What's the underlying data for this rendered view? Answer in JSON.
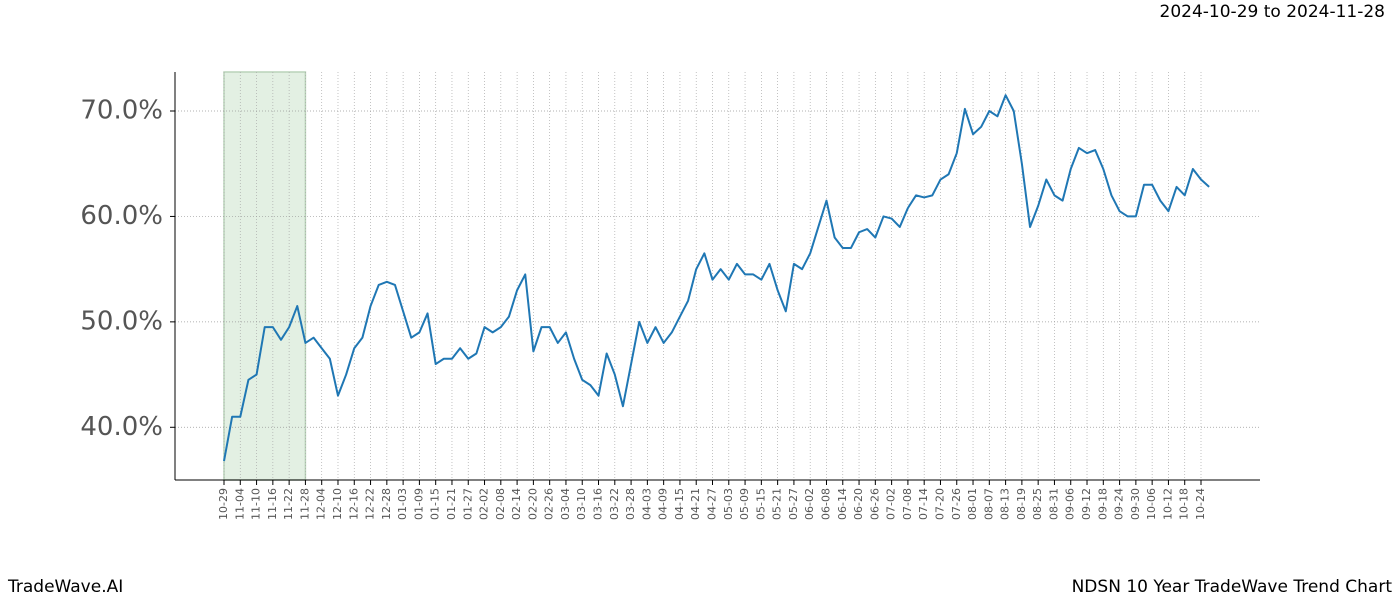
{
  "chart_data": {
    "type": "line",
    "title": "NDSN 10 Year TradeWave Trend Chart",
    "subtitle": "2024-10-29 to 2024-11-28",
    "brand": "TradeWave.AI",
    "categories": [
      "10-29",
      null,
      "11-04",
      null,
      "11-10",
      null,
      "11-16",
      null,
      "11-22",
      null,
      "11-28",
      null,
      "12-04",
      null,
      "12-10",
      null,
      "12-16",
      null,
      "12-22",
      null,
      "12-28",
      null,
      "01-03",
      null,
      "01-09",
      null,
      "01-15",
      null,
      "01-21",
      null,
      "01-27",
      null,
      "02-02",
      null,
      "02-08",
      null,
      "02-14",
      null,
      "02-20",
      null,
      "02-26",
      null,
      "03-04",
      null,
      "03-10",
      null,
      "03-16",
      null,
      "03-22",
      null,
      "03-28",
      null,
      "04-03",
      null,
      "04-09",
      null,
      "04-15",
      null,
      "04-21",
      null,
      "04-27",
      null,
      "05-03",
      null,
      "05-09",
      null,
      "05-15",
      null,
      "05-21",
      null,
      "05-27",
      null,
      "06-02",
      null,
      "06-08",
      null,
      "06-14",
      null,
      "06-20",
      null,
      "06-26",
      null,
      "07-02",
      null,
      "07-08",
      null,
      "07-14",
      null,
      "07-20",
      null,
      "07-26",
      null,
      "08-01",
      null,
      "08-07",
      null,
      "08-13",
      null,
      "08-19",
      null,
      "08-25",
      null,
      "08-31",
      null,
      "09-06",
      null,
      "09-12",
      null,
      "09-18",
      null,
      "09-24",
      null,
      "09-30",
      null,
      "10-06",
      null,
      "10-12",
      null,
      "10-18",
      null,
      "10-24",
      null
    ],
    "series": [
      {
        "color": "#1f77b4",
        "values": [
          36.8,
          41.0,
          41.0,
          44.5,
          45.0,
          49.5,
          49.5,
          48.3,
          49.5,
          51.5,
          48.0,
          48.5,
          47.5,
          46.5,
          43.0,
          45.0,
          47.5,
          48.5,
          51.5,
          53.5,
          53.8,
          53.5,
          51.0,
          48.5,
          49.0,
          50.8,
          46.0,
          46.5,
          46.5,
          47.5,
          46.5,
          47.0,
          49.5,
          49.0,
          49.5,
          50.5,
          53.0,
          54.5,
          47.2,
          49.5,
          49.5,
          48.0,
          49.0,
          46.5,
          44.5,
          44.0,
          43.0,
          47.0,
          45.0,
          42.0,
          46.0,
          50.0,
          48.0,
          49.5,
          48.0,
          49.0,
          50.5,
          52.0,
          55.0,
          56.5,
          54.0,
          55.0,
          54.0,
          55.5,
          54.5,
          54.5,
          54.0,
          55.5,
          53.0,
          51.0,
          55.5,
          55.0,
          56.5,
          59.0,
          61.5,
          58.0,
          57.0,
          57.0,
          58.5,
          58.8,
          58.0,
          60.0,
          59.8,
          59.0,
          60.8,
          62.0,
          61.8,
          62.0,
          63.5,
          64.0,
          66.0,
          70.2,
          67.8,
          68.5,
          70.0,
          69.5,
          71.5,
          70.0,
          65.0,
          59.0,
          61.0,
          63.5,
          62.0,
          61.5,
          64.5,
          66.5,
          66.0,
          66.3,
          64.5,
          62.0,
          60.5,
          60.0,
          60.0,
          63.0,
          63.0,
          61.5,
          60.5,
          62.8,
          62.0,
          64.5,
          63.5,
          62.8
        ]
      }
    ],
    "shade": [
      "10-29",
      "11-28"
    ],
    "ylim": [
      35.0,
      73.7
    ],
    "yticks": [
      {
        "value": 40,
        "label": "40.0%"
      },
      {
        "value": 50,
        "label": "50.0%"
      },
      {
        "value": 60,
        "label": "60.0%"
      },
      {
        "value": 70,
        "label": "70.0%"
      }
    ],
    "grid": true
  }
}
